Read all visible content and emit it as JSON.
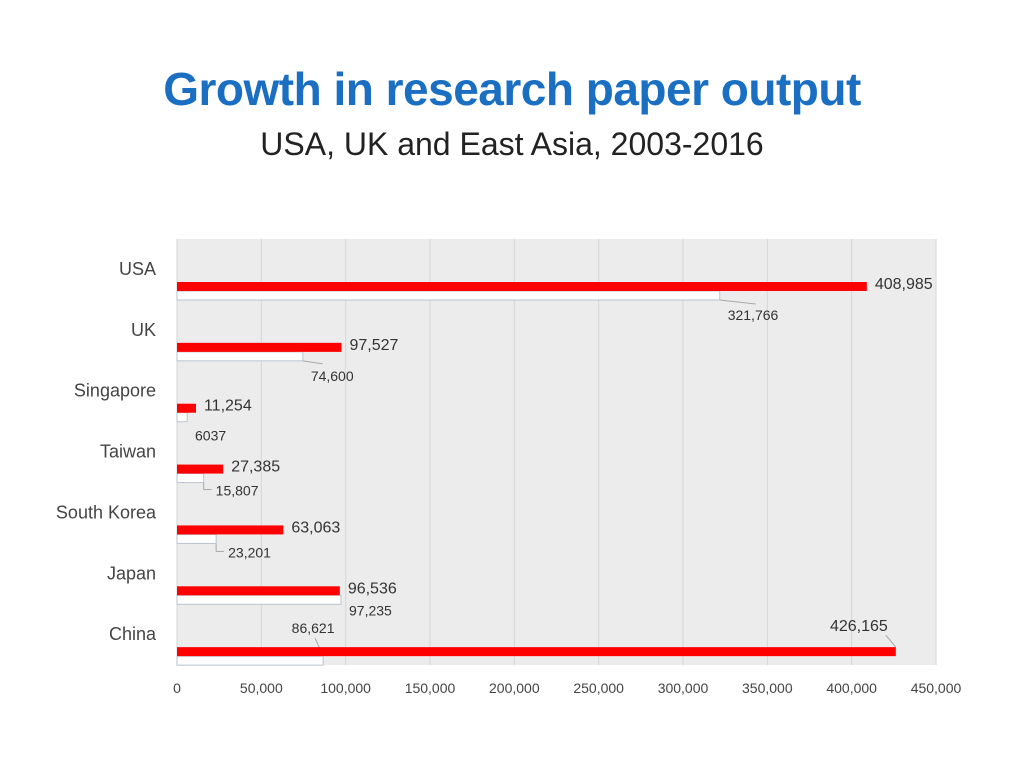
{
  "title": "Growth in research paper output",
  "subtitle": "USA, UK and East Asia, 2003-2016",
  "colors": {
    "accent": "#ff0000",
    "title": "#1a6fc2",
    "plot_bg": "#ececec",
    "old_bar": "#ffffff"
  },
  "chart_data": {
    "type": "bar",
    "orientation": "horizontal",
    "categories": [
      "USA",
      "UK",
      "Singapore",
      "Taiwan",
      "South Korea",
      "Japan",
      "China"
    ],
    "series": [
      {
        "color": "#ff0000",
        "values": [
          408985,
          97527,
          11254,
          27385,
          63063,
          96536,
          426165
        ],
        "labels": [
          "408,985",
          "97,527",
          "11,254",
          "27,385",
          "63,063",
          "96,536",
          "426,165"
        ]
      },
      {
        "color": "#ffffff",
        "values": [
          321766,
          74600,
          6037,
          15807,
          23201,
          97235,
          86621
        ],
        "labels": [
          "321,766",
          "74,600",
          "6037",
          "15,807",
          "23,201",
          "97,235",
          "86,621"
        ]
      }
    ],
    "xlim": [
      0,
      450000
    ],
    "x_ticks": [
      0,
      50000,
      100000,
      150000,
      200000,
      250000,
      300000,
      350000,
      400000,
      450000
    ],
    "x_tick_labels": [
      "0",
      "50,000",
      "100,000",
      "150,000",
      "200,000",
      "250,000",
      "300,000",
      "350,000",
      "400,000",
      "450,000"
    ],
    "xlabel": "",
    "ylabel": "",
    "grid": true,
    "legend": "none"
  }
}
